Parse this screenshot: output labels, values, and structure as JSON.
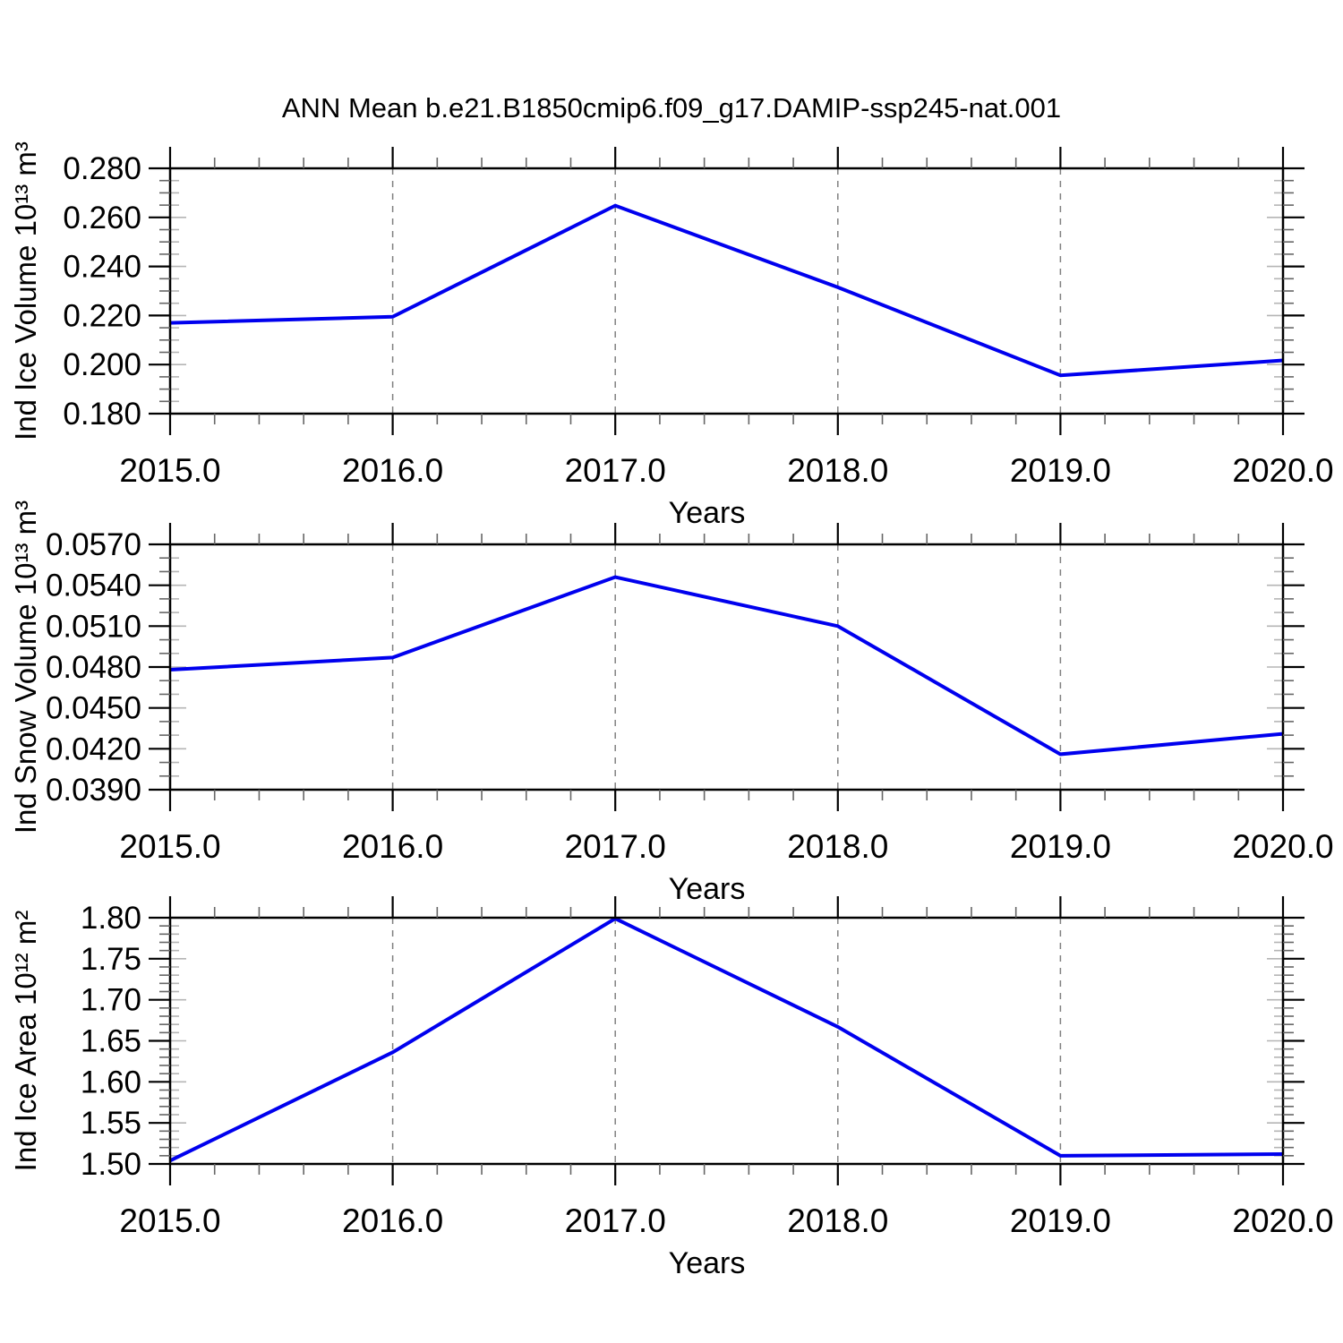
{
  "title": "ANN Mean b.e21.B1850cmip6.f09_g17.DAMIP-ssp245-nat.001",
  "line_color": "#0000ee",
  "frame_color": "#000000",
  "gridline_color": "#808080",
  "minor_tick_color": "#666666",
  "inner_stub_color": "#b5b5b5",
  "chart_data": [
    {
      "type": "line",
      "name": "ind-ice-volume",
      "ylabel": "Ind Ice Volume 10¹³ m³",
      "xlabel": "Years",
      "x": [
        2015.0,
        2016.0,
        2017.0,
        2018.0,
        2019.0,
        2020.0
      ],
      "values": [
        0.217,
        0.2195,
        0.2648,
        0.2315,
        0.1956,
        0.2017
      ],
      "xlim": [
        2015.0,
        2020.0
      ],
      "ylim": [
        0.18,
        0.28
      ],
      "x_tick_values": [
        2015,
        2016,
        2017,
        2018,
        2019,
        2020
      ],
      "x_tick_labels": [
        "2015.0",
        "2016.0",
        "2017.0",
        "2018.0",
        "2019.0",
        "2020.0"
      ],
      "x_minor_step": 0.2,
      "y_tick_values": [
        0.18,
        0.2,
        0.22,
        0.24,
        0.26,
        0.28
      ],
      "y_tick_labels": [
        "0.180",
        "0.200",
        "0.220",
        "0.240",
        "0.260",
        "0.280"
      ],
      "y_minor_step": 0.005,
      "gridline_x_values": [
        2016,
        2017,
        2018,
        2019
      ],
      "grid": "vertical-dashed",
      "legend": "none"
    },
    {
      "type": "line",
      "name": "ind-snow-volume",
      "ylabel": "Ind Snow Volume 10¹³ m³",
      "xlabel": "Years",
      "x": [
        2015.0,
        2016.0,
        2017.0,
        2018.0,
        2019.0,
        2020.0
      ],
      "values": [
        0.0478,
        0.0487,
        0.0546,
        0.051,
        0.0416,
        0.0431
      ],
      "xlim": [
        2015.0,
        2020.0
      ],
      "ylim": [
        0.039,
        0.057
      ],
      "x_tick_values": [
        2015,
        2016,
        2017,
        2018,
        2019,
        2020
      ],
      "x_tick_labels": [
        "2015.0",
        "2016.0",
        "2017.0",
        "2018.0",
        "2019.0",
        "2020.0"
      ],
      "x_minor_step": 0.2,
      "y_tick_values": [
        0.039,
        0.042,
        0.045,
        0.048,
        0.051,
        0.054,
        0.057
      ],
      "y_tick_labels": [
        "0.0390",
        "0.0420",
        "0.0450",
        "0.0480",
        "0.0510",
        "0.0540",
        "0.0570"
      ],
      "y_minor_step": 0.001,
      "gridline_x_values": [
        2016,
        2017,
        2018,
        2019
      ],
      "grid": "vertical-dashed",
      "legend": "none"
    },
    {
      "type": "line",
      "name": "ind-ice-area",
      "ylabel": "Ind Ice Area 10¹² m²",
      "xlabel": "Years",
      "x": [
        2015.0,
        2016.0,
        2017.0,
        2018.0,
        2019.0,
        2020.0
      ],
      "values": [
        1.504,
        1.636,
        1.799,
        1.667,
        1.51,
        1.512
      ],
      "xlim": [
        2015.0,
        2020.0
      ],
      "ylim": [
        1.5,
        1.8
      ],
      "x_tick_values": [
        2015,
        2016,
        2017,
        2018,
        2019,
        2020
      ],
      "x_tick_labels": [
        "2015.0",
        "2016.0",
        "2017.0",
        "2018.0",
        "2019.0",
        "2020.0"
      ],
      "x_minor_step": 0.2,
      "y_tick_values": [
        1.5,
        1.55,
        1.6,
        1.65,
        1.7,
        1.75,
        1.8
      ],
      "y_tick_labels": [
        "1.50",
        "1.55",
        "1.60",
        "1.65",
        "1.70",
        "1.75",
        "1.80"
      ],
      "y_minor_step": 0.01,
      "gridline_x_values": [
        2016,
        2017,
        2018,
        2019
      ],
      "grid": "vertical-dashed",
      "legend": "none"
    }
  ]
}
